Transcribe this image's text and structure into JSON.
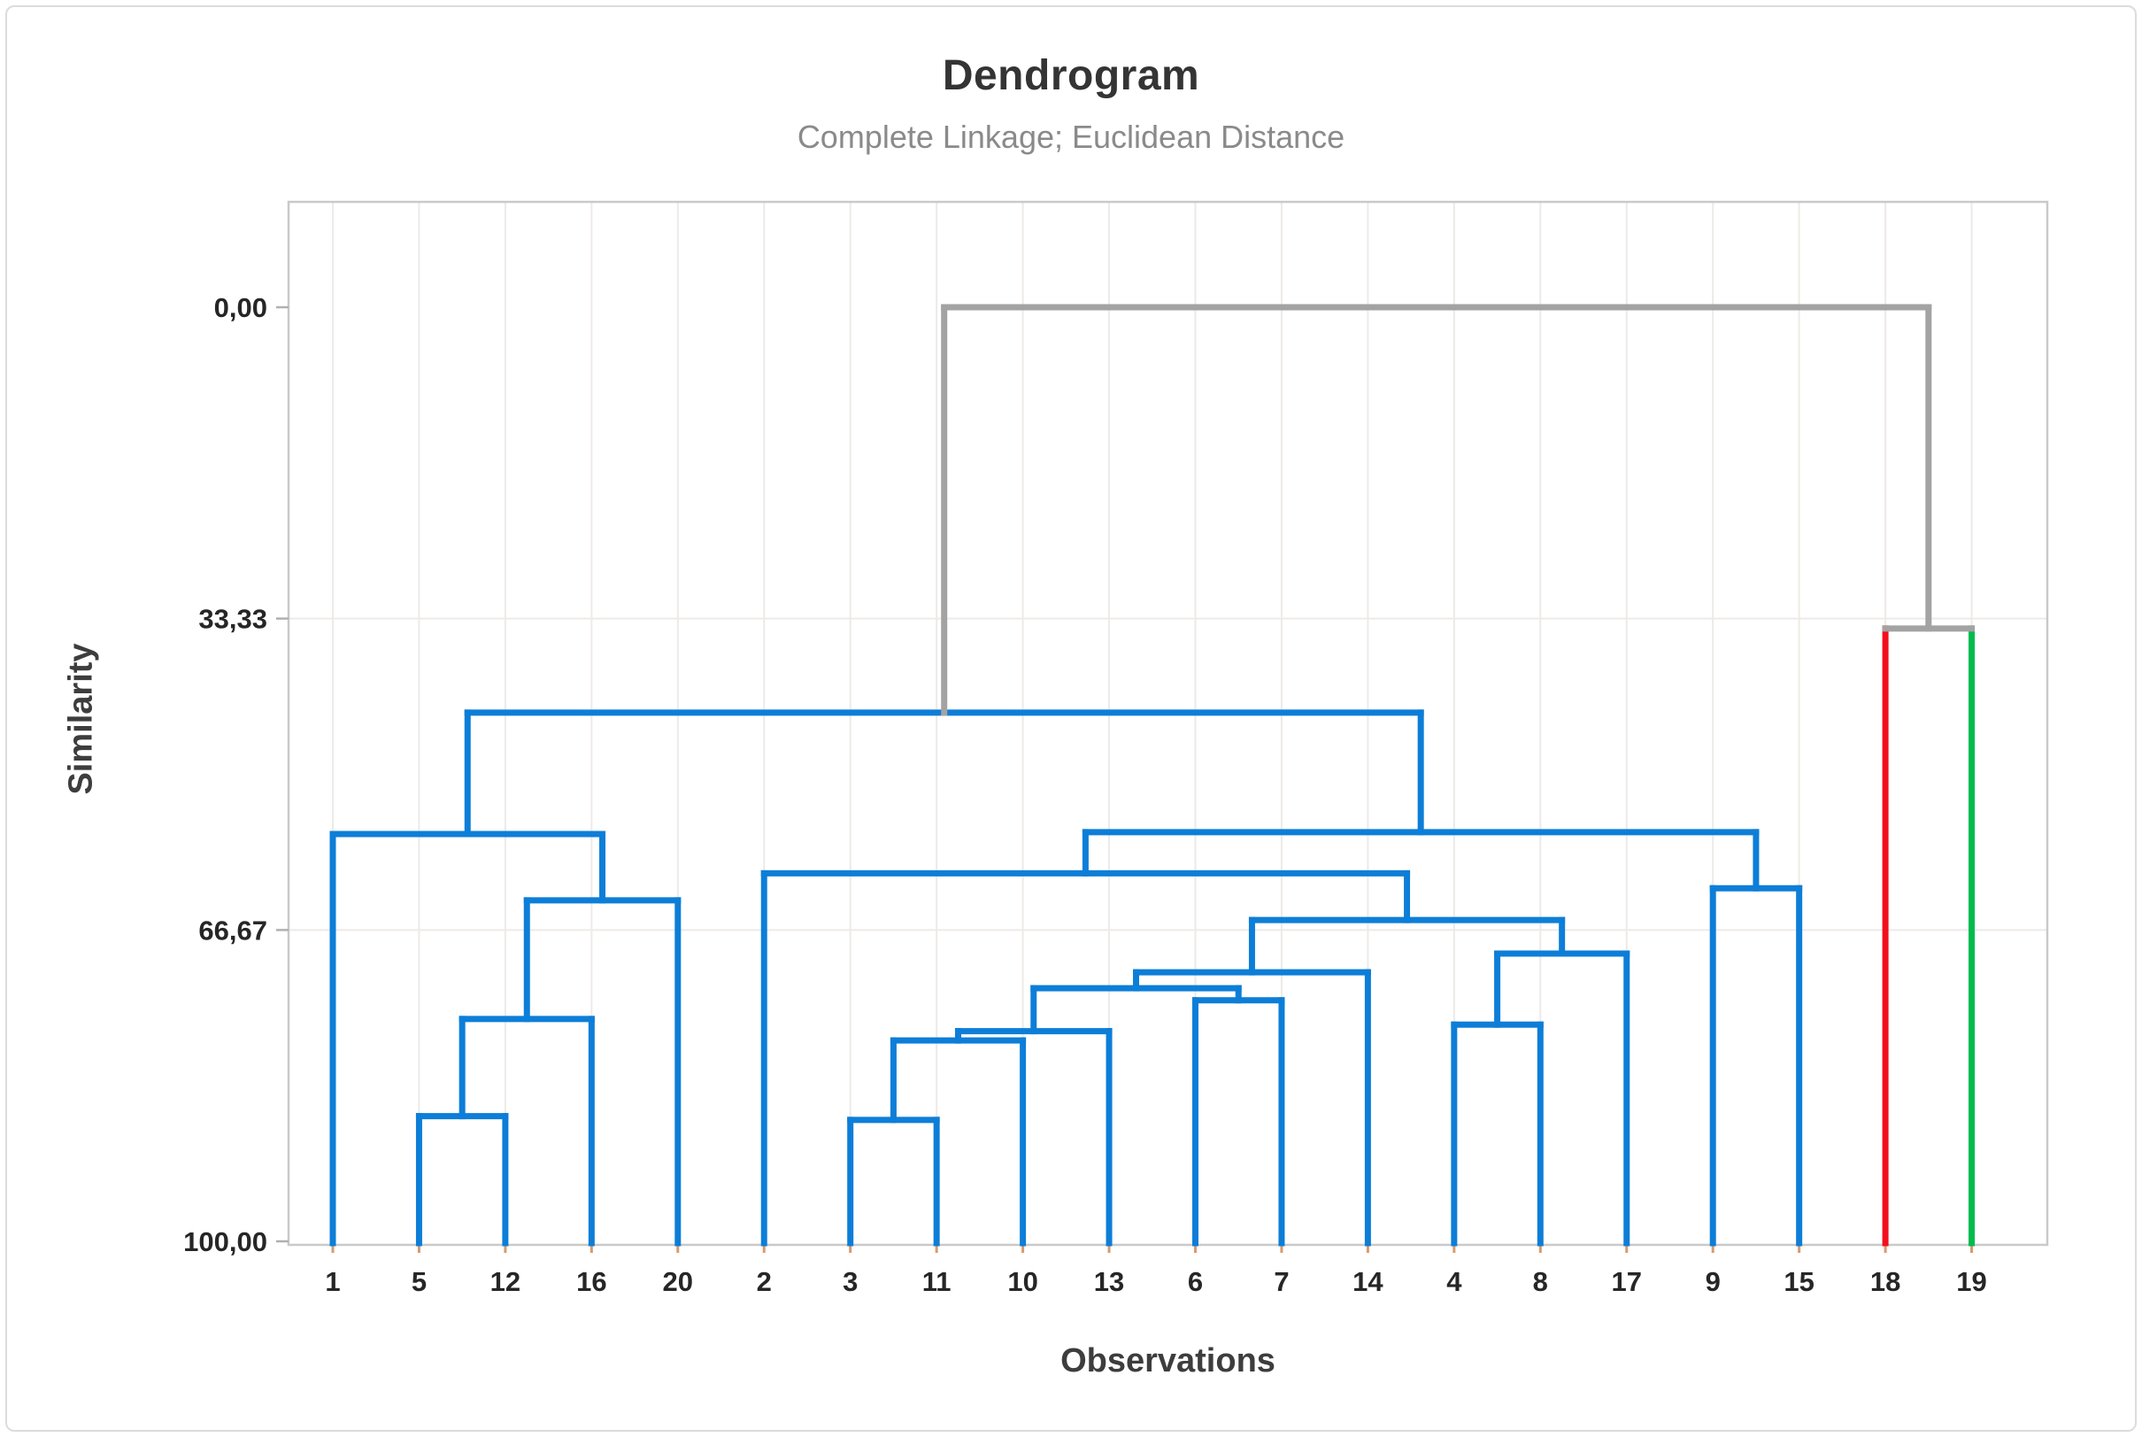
{
  "chart_data": {
    "type": "dendrogram",
    "title": "Dendrogram",
    "subtitle": "Complete Linkage; Euclidean Distance",
    "xlabel": "Observations",
    "ylabel": "Similarity",
    "y_axis": {
      "ticks": [
        {
          "label": "0,00",
          "value": 0
        },
        {
          "label": "33,33",
          "value": 33.33
        },
        {
          "label": "66,67",
          "value": 66.67
        },
        {
          "label": "100,00",
          "value": 100
        }
      ],
      "grid_values": [
        33.33,
        66.67
      ],
      "range_note": "similarity 0 at top of tree, 100 at leaves"
    },
    "leaves": [
      "1",
      "5",
      "12",
      "16",
      "20",
      "2",
      "3",
      "11",
      "10",
      "13",
      "6",
      "7",
      "14",
      "4",
      "8",
      "17",
      "9",
      "15",
      "18",
      "19"
    ],
    "leaf_colors": {
      "18": "red",
      "19": "green",
      "default": "blue"
    },
    "merges": [
      {
        "id": "M1",
        "a": "L3",
        "b": "L11",
        "similarity": 87.0,
        "color_a": "blue",
        "color_b": "blue",
        "color_h": "blue"
      },
      {
        "id": "M2",
        "a": "L5",
        "b": "L12",
        "similarity": 86.6,
        "color_a": "blue",
        "color_b": "blue",
        "color_h": "blue"
      },
      {
        "id": "M3",
        "a": "M1",
        "b": "L10",
        "similarity": 78.5,
        "color_a": "blue",
        "color_b": "blue",
        "color_h": "blue"
      },
      {
        "id": "M4",
        "a": "M3",
        "b": "L13",
        "similarity": 77.5,
        "color_a": "blue",
        "color_b": "blue",
        "color_h": "blue"
      },
      {
        "id": "M5",
        "a": "L4",
        "b": "L8",
        "similarity": 76.8,
        "color_a": "blue",
        "color_b": "blue",
        "color_h": "blue"
      },
      {
        "id": "M6",
        "a": "M2",
        "b": "L16",
        "similarity": 76.2,
        "color_a": "blue",
        "color_b": "blue",
        "color_h": "blue"
      },
      {
        "id": "M7",
        "a": "L6",
        "b": "L7",
        "similarity": 74.2,
        "color_a": "blue",
        "color_b": "blue",
        "color_h": "blue"
      },
      {
        "id": "M8",
        "a": "M4",
        "b": "M7",
        "similarity": 72.9,
        "color_a": "blue",
        "color_b": "blue",
        "color_h": "blue"
      },
      {
        "id": "M9",
        "a": "M8",
        "b": "L14",
        "similarity": 71.2,
        "color_a": "blue",
        "color_b": "blue",
        "color_h": "blue"
      },
      {
        "id": "M10",
        "a": "M5",
        "b": "L17",
        "similarity": 69.2,
        "color_a": "blue",
        "color_b": "blue",
        "color_h": "blue"
      },
      {
        "id": "M11",
        "a": "M9",
        "b": "M10",
        "similarity": 65.6,
        "color_a": "blue",
        "color_b": "blue",
        "color_h": "blue"
      },
      {
        "id": "M12",
        "a": "M6",
        "b": "L20",
        "similarity": 63.5,
        "color_a": "blue",
        "color_b": "blue",
        "color_h": "blue"
      },
      {
        "id": "M13",
        "a": "L9",
        "b": "L15",
        "similarity": 62.2,
        "color_a": "blue",
        "color_b": "blue",
        "color_h": "blue"
      },
      {
        "id": "M14",
        "a": "L2",
        "b": "M11",
        "similarity": 60.6,
        "color_a": "blue",
        "color_b": "blue",
        "color_h": "blue"
      },
      {
        "id": "M15",
        "a": "L1",
        "b": "M12",
        "similarity": 56.4,
        "color_a": "blue",
        "color_b": "blue",
        "color_h": "blue"
      },
      {
        "id": "M16",
        "a": "M14",
        "b": "M13",
        "similarity": 56.2,
        "color_a": "blue",
        "color_b": "blue",
        "color_h": "blue"
      },
      {
        "id": "M17",
        "a": "M15",
        "b": "M16",
        "similarity": 43.4,
        "color_a": "blue",
        "color_b": "blue",
        "color_h": "blue"
      },
      {
        "id": "M18",
        "a": "L18",
        "b": "L19",
        "similarity": 34.4,
        "color_a": "red",
        "color_b": "green",
        "color_h": "gray"
      },
      {
        "id": "M19",
        "a": "M17",
        "b": "M18",
        "similarity": 0.0,
        "color_a": "gray",
        "color_b": "gray",
        "color_h": "gray"
      }
    ],
    "colors": {
      "blue": "#0d7ed8",
      "red": "#f3101e",
      "green": "#00bb4e",
      "gray": "#a3a3a3",
      "frame": "#c9c9c9",
      "grid": "#edeae7",
      "tick": "#b0b0b0",
      "leaf_tick": "#d99a6c"
    },
    "legend_position": "none",
    "grid": "on"
  }
}
